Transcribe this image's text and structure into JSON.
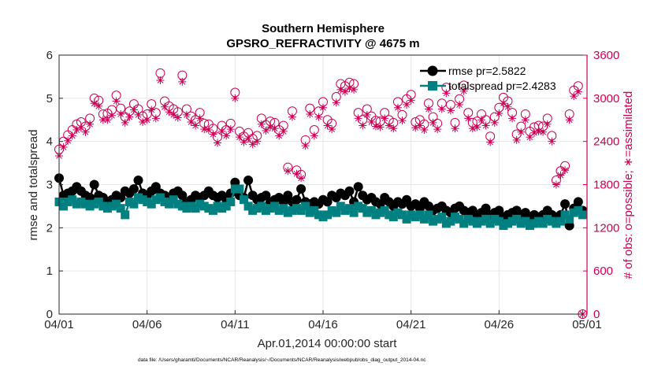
{
  "chart_data": {
    "type": "line",
    "title": "Southern Hemisphere",
    "subtitle": "GPSRO_REFRACTIVITY @ 4675 m",
    "xlabel": "Apr.01,2014 00:00:00 start",
    "ylabel_left": "rmse and totalspread",
    "ylabel_right": "# of obs: o=possible; ∗=assimilated",
    "footnote": "data file: /Users/gharamti/Documents/NCAR/Reanalysis/~/Documents/NCAR/Reanalysis/webpub/obs_diag_output_2014-04.nc",
    "x_range_days": [
      0,
      30
    ],
    "x_ticks": [
      {
        "day": 0,
        "label": "04/01"
      },
      {
        "day": 5,
        "label": "04/06"
      },
      {
        "day": 10,
        "label": "04/11"
      },
      {
        "day": 15,
        "label": "04/16"
      },
      {
        "day": 20,
        "label": "04/21"
      },
      {
        "day": 25,
        "label": "04/26"
      },
      {
        "day": 30,
        "label": "05/01"
      }
    ],
    "ylim_left": [
      0,
      6
    ],
    "yticks_left": [
      0,
      1,
      2,
      3,
      4,
      5,
      6
    ],
    "ylim_right": [
      0,
      3600
    ],
    "yticks_right": [
      0,
      600,
      1200,
      1800,
      2400,
      3000,
      3600
    ],
    "grid": true,
    "legend_position": "top-right",
    "x": [
      0.0,
      0.25,
      0.5,
      0.75,
      1.0,
      1.25,
      1.5,
      1.75,
      2.0,
      2.25,
      2.5,
      2.75,
      3.0,
      3.25,
      3.5,
      3.75,
      4.0,
      4.25,
      4.5,
      4.75,
      5.0,
      5.25,
      5.5,
      5.75,
      6.0,
      6.25,
      6.5,
      6.75,
      7.0,
      7.25,
      7.5,
      7.75,
      8.0,
      8.25,
      8.5,
      8.75,
      9.0,
      9.25,
      9.5,
      9.75,
      10.0,
      10.25,
      10.5,
      10.75,
      11.0,
      11.25,
      11.5,
      11.75,
      12.0,
      12.25,
      12.5,
      12.75,
      13.0,
      13.25,
      13.5,
      13.75,
      14.0,
      14.25,
      14.5,
      14.75,
      15.0,
      15.25,
      15.5,
      15.75,
      16.0,
      16.25,
      16.5,
      16.75,
      17.0,
      17.25,
      17.5,
      17.75,
      18.0,
      18.25,
      18.5,
      18.75,
      19.0,
      19.25,
      19.5,
      19.75,
      20.0,
      20.25,
      20.5,
      20.75,
      21.0,
      21.25,
      21.5,
      21.75,
      22.0,
      22.25,
      22.5,
      22.75,
      23.0,
      23.25,
      23.5,
      23.75,
      24.0,
      24.25,
      24.5,
      24.75,
      25.0,
      25.25,
      25.5,
      25.75,
      26.0,
      26.25,
      26.5,
      26.75,
      27.0,
      27.25,
      27.5,
      27.75,
      28.0,
      28.25,
      28.5,
      28.75,
      29.0,
      29.25,
      29.5,
      29.75
    ],
    "series": [
      {
        "name": "rmse",
        "legend": "rmse pr=2.5822",
        "axis": "left",
        "color": "#000000",
        "marker": "circle",
        "values": [
          3.15,
          2.75,
          2.8,
          2.85,
          2.95,
          2.85,
          2.75,
          2.7,
          3.0,
          2.75,
          2.7,
          2.6,
          2.65,
          2.75,
          2.7,
          2.85,
          2.8,
          2.9,
          3.1,
          2.8,
          2.75,
          2.85,
          2.95,
          2.8,
          2.75,
          2.7,
          2.8,
          2.85,
          2.75,
          2.6,
          2.65,
          2.75,
          2.7,
          2.75,
          2.85,
          2.75,
          2.7,
          2.75,
          2.65,
          2.8,
          3.05,
          2.75,
          2.7,
          3.1,
          2.75,
          2.65,
          2.7,
          2.75,
          2.6,
          2.65,
          2.7,
          2.6,
          2.75,
          2.6,
          2.65,
          2.9,
          2.6,
          2.55,
          2.6,
          2.55,
          2.65,
          2.6,
          2.75,
          2.7,
          2.8,
          2.75,
          2.85,
          2.6,
          2.95,
          2.75,
          2.65,
          2.7,
          2.6,
          2.55,
          2.7,
          2.6,
          2.5,
          2.6,
          2.55,
          2.65,
          2.5,
          2.55,
          2.45,
          2.6,
          2.5,
          2.4,
          2.45,
          2.5,
          2.4,
          2.35,
          2.45,
          2.5,
          2.4,
          2.35,
          2.4,
          2.3,
          2.35,
          2.45,
          2.3,
          2.35,
          2.4,
          2.25,
          2.3,
          2.35,
          2.4,
          2.3,
          2.35,
          2.25,
          2.3,
          2.25,
          2.3,
          2.4,
          2.3,
          2.25,
          2.3,
          2.55,
          2.05,
          2.45,
          2.6,
          2.4
        ]
      },
      {
        "name": "totalspread",
        "legend": "totalspread pr=2.4283",
        "axis": "left",
        "color": "#008080",
        "marker": "square",
        "values": [
          2.6,
          2.5,
          2.6,
          2.65,
          2.55,
          2.6,
          2.55,
          2.5,
          2.55,
          2.6,
          2.5,
          2.45,
          2.5,
          2.55,
          2.45,
          2.3,
          2.6,
          2.55,
          2.7,
          2.65,
          2.6,
          2.55,
          2.65,
          2.7,
          2.6,
          2.55,
          2.65,
          2.55,
          2.5,
          2.45,
          2.5,
          2.45,
          2.55,
          2.5,
          2.45,
          2.4,
          2.5,
          2.45,
          2.5,
          2.6,
          2.9,
          2.9,
          2.65,
          2.5,
          2.4,
          2.45,
          2.5,
          2.4,
          2.45,
          2.5,
          2.4,
          2.45,
          2.35,
          2.4,
          2.45,
          2.4,
          2.5,
          2.35,
          2.4,
          2.3,
          2.25,
          2.3,
          2.4,
          2.35,
          2.5,
          2.4,
          2.45,
          2.35,
          2.5,
          2.45,
          2.35,
          2.4,
          2.3,
          2.35,
          2.4,
          2.3,
          2.25,
          2.35,
          2.3,
          2.2,
          2.3,
          2.25,
          2.3,
          2.2,
          2.3,
          2.15,
          2.2,
          2.25,
          2.1,
          2.15,
          2.25,
          2.2,
          2.1,
          2.2,
          2.15,
          2.1,
          2.15,
          2.2,
          2.1,
          2.2,
          2.15,
          2.05,
          2.1,
          2.15,
          2.2,
          2.1,
          2.15,
          2.05,
          2.1,
          2.15,
          2.1,
          2.2,
          2.15,
          2.1,
          2.15,
          2.3,
          2.2,
          2.35,
          2.4,
          2.3
        ]
      },
      {
        "name": "obs_possible",
        "legend": "o=possible",
        "axis": "right",
        "color": "#cc0055",
        "marker": "open-circle",
        "values": [
          2290,
          2400,
          2490,
          2560,
          2640,
          2670,
          2610,
          2720,
          3000,
          2970,
          2780,
          2790,
          2840,
          3040,
          2860,
          2740,
          2820,
          2920,
          2850,
          2750,
          2780,
          2920,
          2800,
          3350,
          2960,
          2890,
          2850,
          2810,
          3320,
          2850,
          2750,
          2700,
          2800,
          2650,
          2640,
          2580,
          2460,
          2620,
          2560,
          2650,
          3080,
          2540,
          2470,
          2520,
          2440,
          2480,
          2720,
          2630,
          2680,
          2660,
          2560,
          2620,
          2040,
          2820,
          2000,
          1940,
          2420,
          2860,
          2560,
          2820,
          2950,
          2700,
          2650,
          3020,
          3200,
          3170,
          3220,
          3200,
          2800,
          2700,
          2850,
          2750,
          2690,
          2680,
          2800,
          2700,
          2660,
          2950,
          2770,
          2990,
          3050,
          2670,
          2700,
          2640,
          2930,
          2740,
          2650,
          2930,
          3150,
          2910,
          2660,
          2990,
          3180,
          2800,
          2660,
          2680,
          2780,
          2700,
          2470,
          2740,
          2870,
          3010,
          2960,
          2800,
          2500,
          2610,
          2780,
          2540,
          2600,
          2620,
          2610,
          2720,
          2480,
          1860,
          1990,
          2060,
          2780,
          3110,
          3170,
          0
        ]
      },
      {
        "name": "obs_assimilated",
        "legend": "∗=assimilated",
        "axis": "right",
        "color": "#cc0055",
        "marker": "asterisk",
        "values": [
          2200,
          2320,
          2410,
          2480,
          2560,
          2590,
          2530,
          2640,
          2930,
          2890,
          2700,
          2700,
          2760,
          2960,
          2780,
          2660,
          2740,
          2840,
          2770,
          2670,
          2700,
          2840,
          2720,
          3250,
          2880,
          2810,
          2770,
          2730,
          3230,
          2770,
          2670,
          2620,
          2720,
          2570,
          2560,
          2500,
          2380,
          2540,
          2480,
          2570,
          3000,
          2460,
          2390,
          2440,
          2360,
          2400,
          2640,
          2550,
          2600,
          2580,
          2480,
          2540,
          1990,
          2740,
          1950,
          1890,
          2340,
          2780,
          2480,
          2740,
          2870,
          2620,
          2570,
          2940,
          3120,
          3090,
          3140,
          3120,
          2720,
          2620,
          2770,
          2670,
          2610,
          2600,
          2720,
          2620,
          2580,
          2870,
          2690,
          2910,
          2970,
          2590,
          2620,
          2560,
          2850,
          2660,
          2570,
          2850,
          3070,
          2830,
          2580,
          2910,
          3100,
          2720,
          2580,
          2600,
          2700,
          2620,
          2390,
          2660,
          2790,
          2930,
          2880,
          2720,
          2420,
          2530,
          2700,
          2460,
          2520,
          2540,
          2530,
          2640,
          2400,
          1800,
          1930,
          2000,
          2700,
          3030,
          3090,
          0
        ]
      }
    ]
  }
}
